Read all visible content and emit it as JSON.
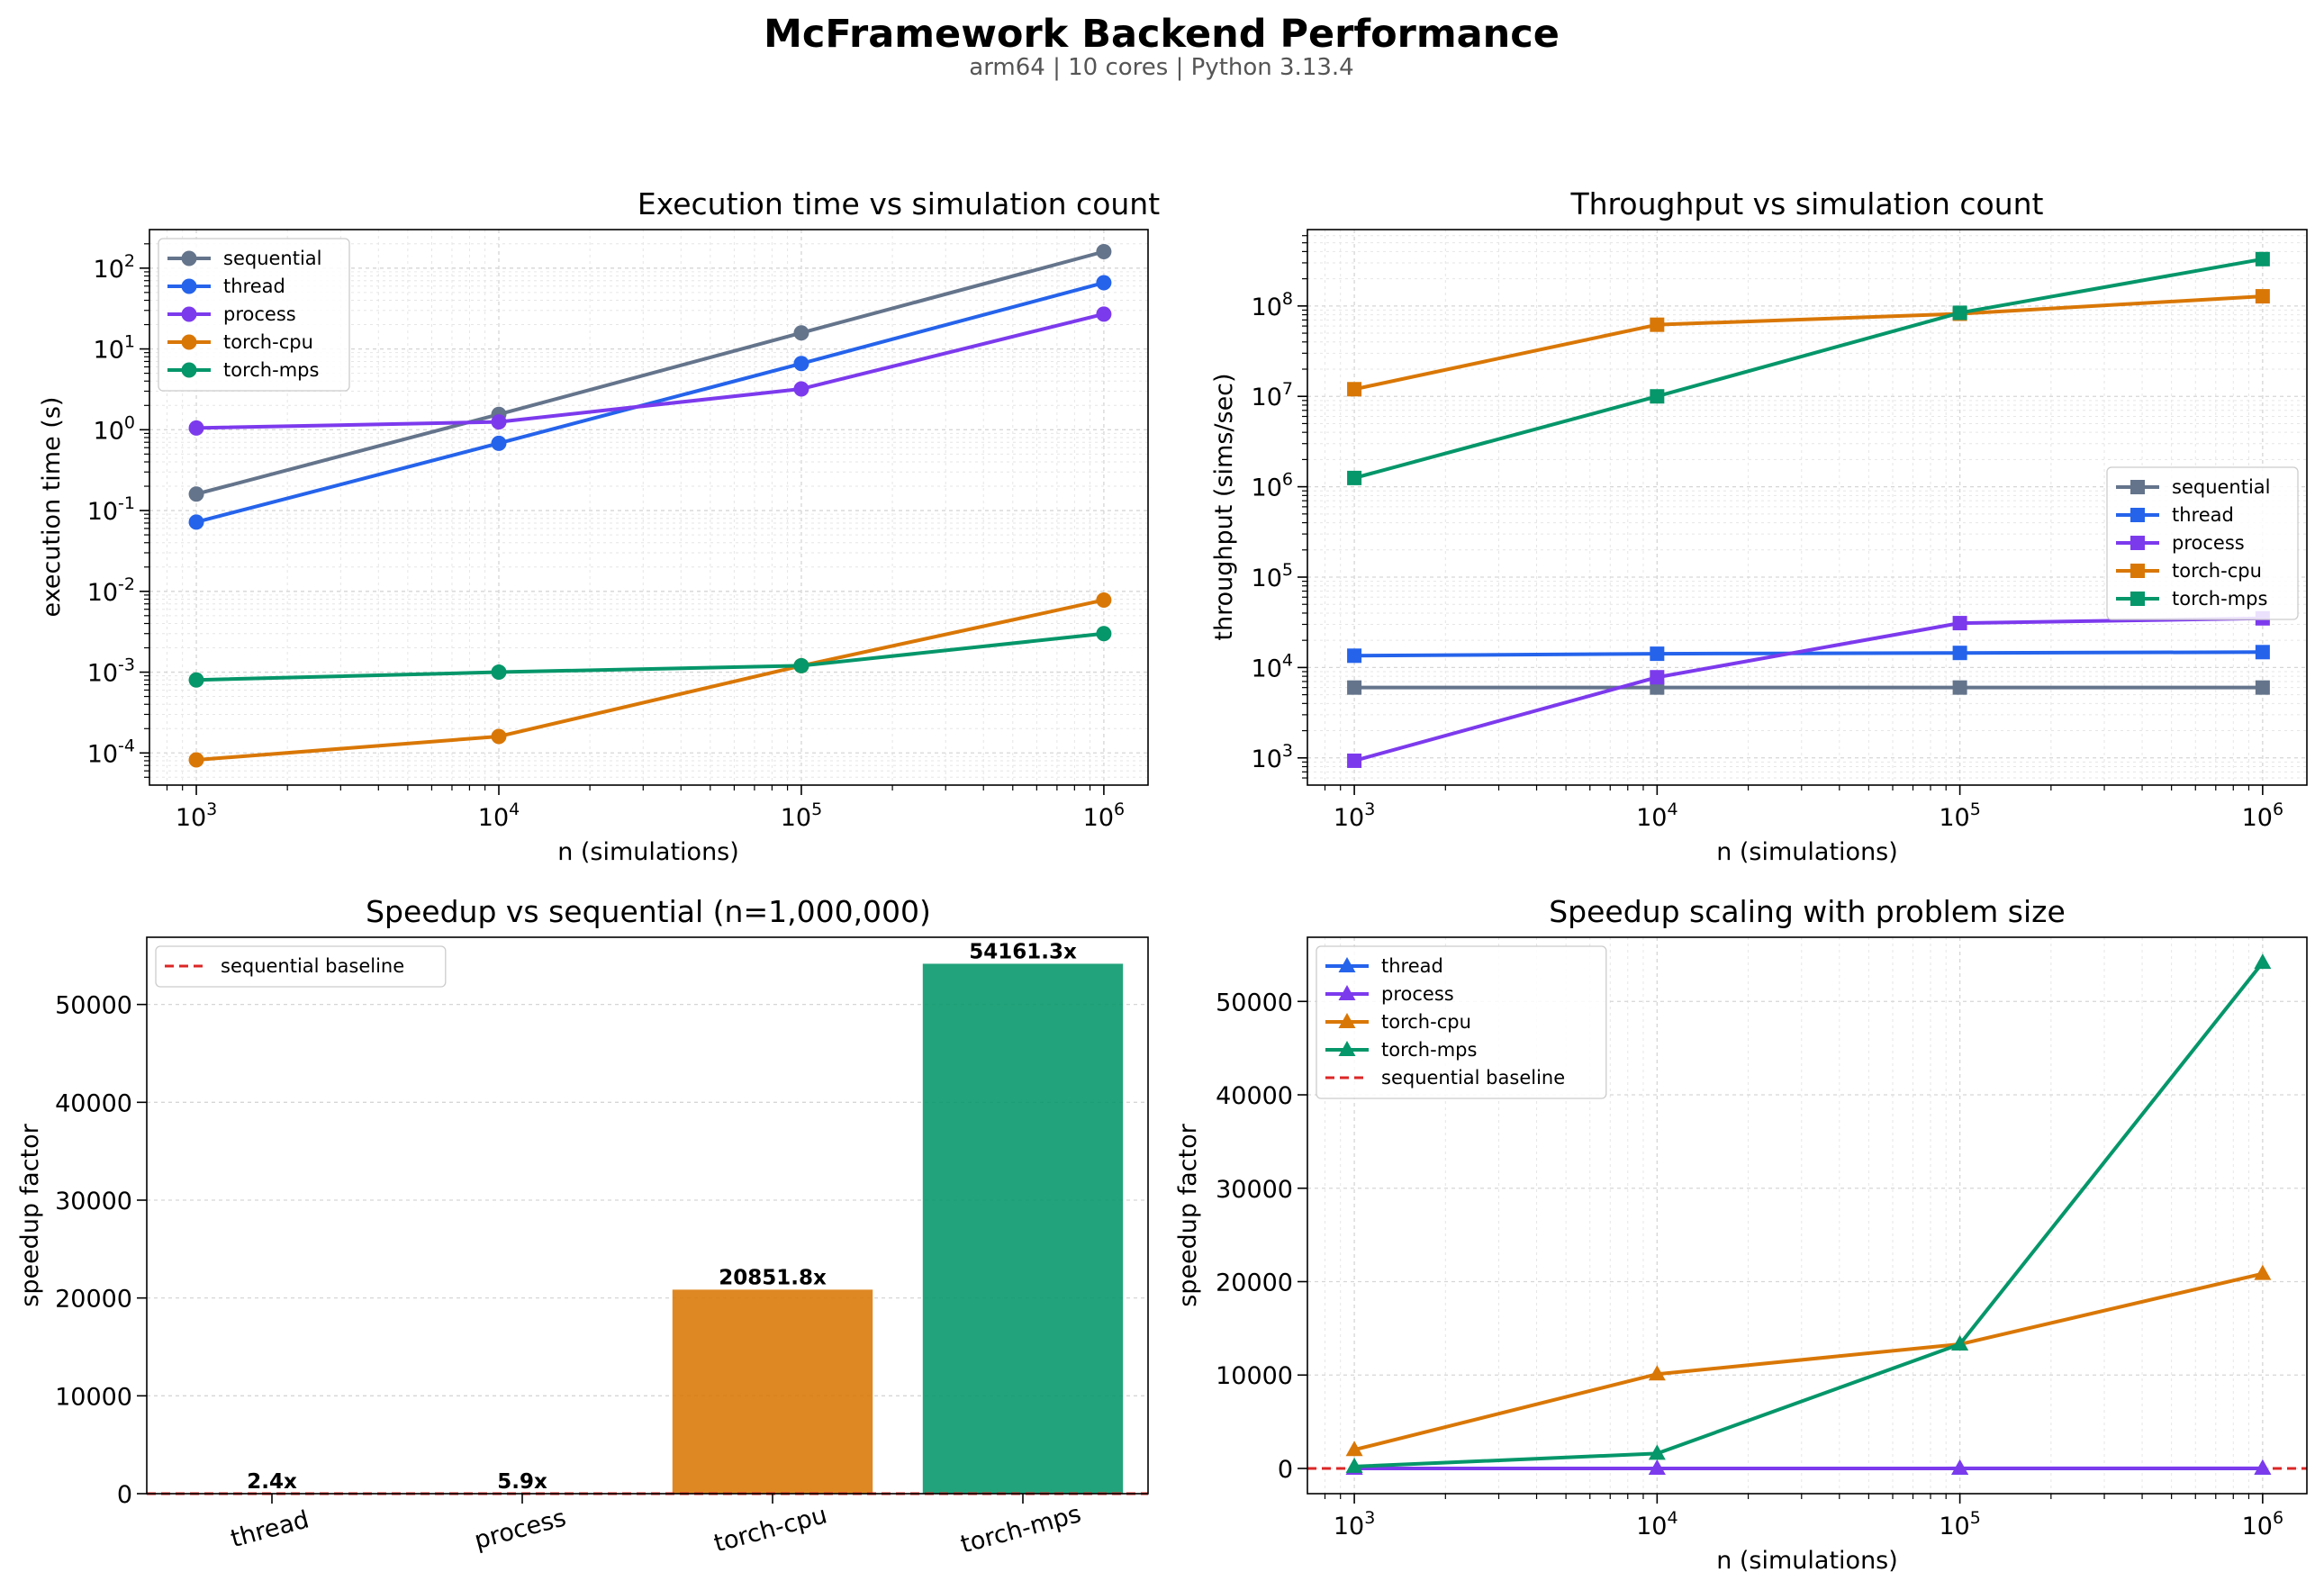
{
  "figure": {
    "title": "McFramework Backend Performance",
    "subtitle": "arm64 | 10 cores | Python 3.13.4"
  },
  "colors": {
    "sequential": "#64748b",
    "thread": "#2563eb",
    "process": "#7c3aed",
    "torch-cpu": "#d97706",
    "torch-mps": "#059669",
    "baseline": "#dc2626"
  },
  "chart_data": [
    {
      "id": "exec",
      "type": "line",
      "title": "Execution time vs simulation count",
      "xlabel": "n (simulations)",
      "ylabel": "execution time (s)",
      "xscale": "log",
      "yscale": "log",
      "xlim": [
        700,
        1400000
      ],
      "ylim": [
        4e-05,
        300
      ],
      "xticks": [
        1000,
        10000,
        100000,
        1000000
      ],
      "yticks": [
        0.0001,
        0.001,
        0.01,
        0.1,
        1,
        10,
        100
      ],
      "marker": "circle",
      "legend": "top-left",
      "grid": true,
      "x": [
        1000,
        10000,
        100000,
        1000000
      ],
      "series": [
        {
          "name": "sequential",
          "values": [
            0.16,
            1.55,
            15.8,
            160
          ]
        },
        {
          "name": "thread",
          "values": [
            0.072,
            0.68,
            6.6,
            66
          ]
        },
        {
          "name": "process",
          "values": [
            1.05,
            1.25,
            3.2,
            27
          ]
        },
        {
          "name": "torch-cpu",
          "values": [
            8.2e-05,
            0.00016,
            0.0012,
            0.0078
          ]
        },
        {
          "name": "torch-mps",
          "values": [
            0.0008,
            0.001,
            0.0012,
            0.003
          ]
        }
      ]
    },
    {
      "id": "thru",
      "type": "line",
      "title": "Throughput vs simulation count",
      "xlabel": "n (simulations)",
      "ylabel": "throughput (sims/sec)",
      "xscale": "log",
      "yscale": "log",
      "xlim": [
        700,
        1400000
      ],
      "ylim": [
        500,
        700000000
      ],
      "xticks": [
        1000,
        10000,
        100000,
        1000000
      ],
      "yticks": [
        1000,
        10000,
        100000,
        1000000,
        10000000,
        100000000
      ],
      "marker": "square",
      "legend": "center-right",
      "grid": true,
      "x": [
        1000,
        10000,
        100000,
        1000000
      ],
      "series": [
        {
          "name": "sequential",
          "values": [
            6000,
            6000,
            6000,
            6000
          ]
        },
        {
          "name": "thread",
          "values": [
            13500,
            14200,
            14500,
            14800
          ]
        },
        {
          "name": "process",
          "values": [
            930,
            7800,
            31000,
            35000
          ]
        },
        {
          "name": "torch-cpu",
          "values": [
            12000000,
            62000000,
            82000000,
            128000000
          ]
        },
        {
          "name": "torch-mps",
          "values": [
            1250000,
            10000000,
            84000000,
            330000000
          ]
        }
      ]
    },
    {
      "id": "speedbar",
      "type": "bar",
      "title": "Speedup vs sequential (n=1,000,000)",
      "ylabel": "speedup factor",
      "ylim": [
        0,
        56870
      ],
      "yticks": [
        0,
        10000,
        20000,
        30000,
        40000,
        50000
      ],
      "categories": [
        "thread",
        "process",
        "torch-cpu",
        "torch-mps"
      ],
      "values": [
        2.4,
        5.9,
        20851.8,
        54161.3
      ],
      "data_labels": [
        "2.4x",
        "5.9x",
        "20851.8x",
        "54161.3x"
      ],
      "baseline": {
        "name": "sequential baseline",
        "value": 1
      },
      "legend": "top-left",
      "grid": "y"
    },
    {
      "id": "scaling",
      "type": "line",
      "title": "Speedup scaling with problem size",
      "xlabel": "n (simulations)",
      "ylabel": "speedup factor",
      "xscale": "log",
      "yscale": "linear",
      "xlim": [
        700,
        1400000
      ],
      "ylim": [
        -2700,
        56870
      ],
      "xticks": [
        1000,
        10000,
        100000,
        1000000
      ],
      "yticks": [
        0,
        10000,
        20000,
        30000,
        40000,
        50000
      ],
      "marker": "triangle",
      "legend": "top-left",
      "grid": true,
      "x": [
        1000,
        10000,
        100000,
        1000000
      ],
      "series": [
        {
          "name": "thread",
          "values": [
            2.2,
            2.3,
            2.4,
            2.4
          ]
        },
        {
          "name": "process",
          "values": [
            0.15,
            1.3,
            5.1,
            5.9
          ]
        },
        {
          "name": "torch-cpu",
          "values": [
            2000,
            10100,
            13300,
            20851.8
          ]
        },
        {
          "name": "torch-mps",
          "values": [
            200,
            1600,
            13300,
            54161.3
          ]
        }
      ],
      "baseline": {
        "name": "sequential baseline",
        "value": 1
      }
    }
  ]
}
